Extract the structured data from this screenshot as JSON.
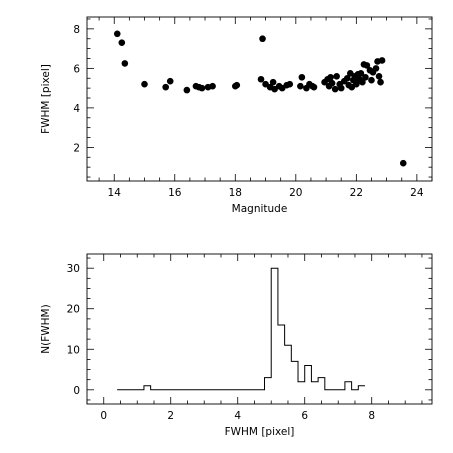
{
  "chart_data": [
    {
      "type": "scatter",
      "title": "",
      "xlabel": "Magnitude",
      "ylabel": "FWHM [pixel]",
      "xlim": [
        13.1,
        24.5
      ],
      "ylim": [
        0.3,
        8.6
      ],
      "xticks": [
        14,
        16,
        18,
        20,
        22,
        24
      ],
      "yticks": [
        2,
        4,
        6,
        8
      ],
      "grid": false,
      "marker_color": "#000000",
      "series": [
        {
          "points": [
            [
              14.1,
              7.75
            ],
            [
              14.25,
              7.3
            ],
            [
              14.35,
              6.25
            ],
            [
              15.0,
              5.2
            ],
            [
              15.7,
              5.05
            ],
            [
              15.85,
              5.35
            ],
            [
              16.4,
              4.9
            ],
            [
              16.7,
              5.1
            ],
            [
              16.8,
              5.05
            ],
            [
              16.9,
              5.0
            ],
            [
              17.1,
              5.05
            ],
            [
              17.25,
              5.1
            ],
            [
              18.0,
              5.1
            ],
            [
              18.05,
              5.15
            ],
            [
              18.85,
              5.45
            ],
            [
              18.9,
              7.5
            ],
            [
              19.0,
              5.2
            ],
            [
              19.15,
              5.05
            ],
            [
              19.25,
              5.3
            ],
            [
              19.3,
              4.95
            ],
            [
              19.45,
              5.1
            ],
            [
              19.55,
              5.0
            ],
            [
              19.7,
              5.15
            ],
            [
              19.8,
              5.2
            ],
            [
              20.15,
              5.1
            ],
            [
              20.2,
              5.55
            ],
            [
              20.35,
              5.0
            ],
            [
              20.45,
              5.2
            ],
            [
              20.55,
              5.1
            ],
            [
              20.6,
              5.05
            ],
            [
              20.95,
              5.3
            ],
            [
              21.05,
              5.45
            ],
            [
              21.1,
              5.1
            ],
            [
              21.15,
              5.55
            ],
            [
              21.2,
              5.25
            ],
            [
              21.3,
              4.95
            ],
            [
              21.35,
              5.6
            ],
            [
              21.45,
              5.2
            ],
            [
              21.5,
              5.0
            ],
            [
              21.6,
              5.35
            ],
            [
              21.7,
              5.5
            ],
            [
              21.75,
              5.15
            ],
            [
              21.8,
              5.75
            ],
            [
              21.85,
              5.05
            ],
            [
              21.9,
              5.4
            ],
            [
              21.95,
              5.6
            ],
            [
              22.0,
              5.2
            ],
            [
              22.05,
              5.7
            ],
            [
              22.1,
              5.45
            ],
            [
              22.15,
              5.75
            ],
            [
              22.2,
              5.3
            ],
            [
              22.25,
              6.2
            ],
            [
              22.3,
              5.55
            ],
            [
              22.35,
              6.15
            ],
            [
              22.45,
              5.9
            ],
            [
              22.5,
              5.4
            ],
            [
              22.55,
              5.8
            ],
            [
              22.65,
              6.0
            ],
            [
              22.7,
              6.35
            ],
            [
              22.75,
              5.6
            ],
            [
              22.8,
              5.3
            ],
            [
              22.85,
              6.4
            ],
            [
              23.55,
              1.2
            ]
          ]
        }
      ]
    },
    {
      "type": "line",
      "step": true,
      "title": "",
      "xlabel": "FWHM [pixel]",
      "ylabel": "N(FWHM)",
      "xlim": [
        -0.5,
        9.8
      ],
      "ylim": [
        -3.5,
        33.5
      ],
      "xticks": [
        0,
        2,
        4,
        6,
        8
      ],
      "yticks": [
        0,
        10,
        20,
        30
      ],
      "grid": false,
      "line_color": "#000000",
      "series": [
        {
          "x": [
            0.4,
            1.2,
            1.2,
            1.4,
            1.4,
            4.8,
            4.8,
            5.0,
            5.0,
            5.2,
            5.2,
            5.4,
            5.4,
            5.6,
            5.6,
            5.8,
            5.8,
            6.0,
            6.0,
            6.2,
            6.2,
            6.4,
            6.4,
            6.6,
            6.6,
            7.2,
            7.2,
            7.4,
            7.4,
            7.6,
            7.6,
            7.8
          ],
          "y": [
            0,
            0,
            1,
            1,
            0,
            0,
            3,
            3,
            30,
            30,
            16,
            16,
            11,
            11,
            7,
            7,
            2,
            2,
            6,
            6,
            2,
            2,
            3,
            3,
            0,
            0,
            2,
            2,
            0,
            0,
            1,
            1
          ]
        }
      ]
    }
  ]
}
